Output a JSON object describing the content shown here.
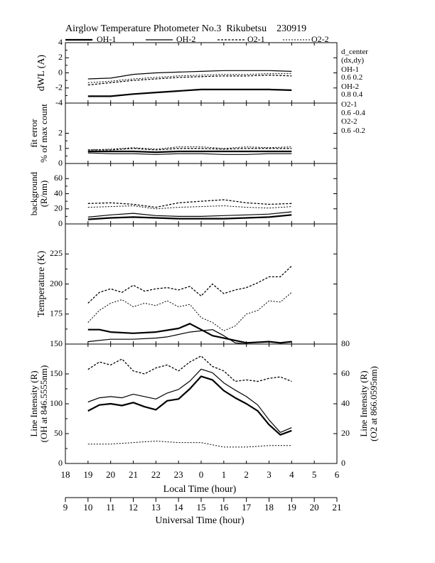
{
  "title": "Airglow Temperature Photometer No.3  Rikubetsu    230919",
  "legend": [
    {
      "name": "OH-1",
      "style": "solid-thick"
    },
    {
      "name": "OH-2",
      "style": "solid-thin"
    },
    {
      "name": "O2-1",
      "style": "dashed"
    },
    {
      "name": "O2-2",
      "style": "dotted"
    }
  ],
  "side_note": {
    "lines": [
      "d_center",
      "(dx,dy)",
      "OH-1",
      "0.6   0.2",
      "OH-2",
      "0.8   0.4",
      "O2-1",
      "0.6   -0.4",
      "O2-2",
      "0.6   -0.2"
    ]
  },
  "x_axes": {
    "local_label": "Local Time (hour)",
    "local_ticks": [
      "18",
      "19",
      "20",
      "21",
      "22",
      "23",
      "0",
      "1",
      "2",
      "3",
      "4",
      "5",
      "6"
    ],
    "ut_label": "Universal Time (hour)",
    "ut_ticks": [
      "9",
      "10",
      "11",
      "12",
      "13",
      "14",
      "15",
      "16",
      "17",
      "18",
      "19",
      "20",
      "21"
    ]
  },
  "chart_data": [
    {
      "type": "line",
      "ylabel": "dWL (A)",
      "ylim": [
        -4,
        4
      ],
      "yticks": [
        "4",
        "2",
        "0",
        "-2",
        "-4"
      ],
      "x_unit": "local hour (19 = 19:00, 28 = 04:00)",
      "series": [
        {
          "name": "OH-1",
          "x": [
            19,
            20,
            21,
            22,
            23,
            24,
            25,
            26,
            27,
            28
          ],
          "y": [
            -3.1,
            -3.1,
            -2.8,
            -2.6,
            -2.4,
            -2.2,
            -2.2,
            -2.2,
            -2.2,
            -2.3
          ]
        },
        {
          "name": "OH-2",
          "x": [
            19,
            20,
            21,
            22,
            23,
            24,
            25,
            26,
            27,
            28
          ],
          "y": [
            -0.8,
            -0.7,
            -0.2,
            0.0,
            0.1,
            0.2,
            0.3,
            0.3,
            0.3,
            0.2
          ]
        },
        {
          "name": "O2-1",
          "x": [
            19,
            20,
            21,
            22,
            23,
            24,
            25,
            26,
            27,
            28
          ],
          "y": [
            -1.6,
            -1.3,
            -1.0,
            -0.8,
            -0.6,
            -0.5,
            -0.4,
            -0.4,
            -0.3,
            -0.4
          ]
        },
        {
          "name": "O2-2",
          "x": [
            19,
            20,
            21,
            22,
            23,
            24,
            25,
            26,
            27,
            28
          ],
          "y": [
            -1.3,
            -1.1,
            -0.8,
            -0.6,
            -0.4,
            -0.3,
            -0.2,
            -0.2,
            -0.1,
            -0.1
          ]
        }
      ]
    },
    {
      "type": "line",
      "ylabel": "fit error",
      "ylabel2": "% of max count",
      "ylim": [
        0,
        4
      ],
      "yticks": [
        "2",
        "1",
        "0"
      ],
      "series": [
        {
          "name": "OH-1",
          "x": [
            19,
            20,
            21,
            22,
            23,
            24,
            25,
            26,
            27,
            28
          ],
          "y": [
            0.8,
            0.8,
            0.8,
            0.75,
            0.8,
            0.8,
            0.8,
            0.8,
            0.8,
            0.8
          ]
        },
        {
          "name": "OH-2",
          "x": [
            19,
            20,
            21,
            22,
            23,
            24,
            25,
            26,
            27,
            28
          ],
          "y": [
            0.7,
            0.65,
            0.65,
            0.6,
            0.65,
            0.65,
            0.6,
            0.6,
            0.65,
            0.65
          ]
        },
        {
          "name": "O2-1",
          "x": [
            19,
            20,
            21,
            22,
            23,
            24,
            25,
            26,
            27,
            28
          ],
          "y": [
            0.9,
            0.9,
            1.0,
            0.9,
            1.0,
            1.0,
            0.95,
            1.0,
            1.0,
            1.0
          ]
        },
        {
          "name": "O2-2",
          "x": [
            19,
            20,
            21,
            22,
            23,
            24,
            25,
            26,
            27,
            28
          ],
          "y": [
            0.9,
            0.95,
            1.05,
            0.95,
            1.1,
            1.1,
            1.0,
            1.1,
            1.05,
            1.1
          ]
        }
      ]
    },
    {
      "type": "line",
      "ylabel": "background",
      "ylabel2": "(R/nm)",
      "ylim": [
        0,
        80
      ],
      "yticks": [
        "60",
        "40",
        "20",
        "0"
      ],
      "series": [
        {
          "name": "OH-1",
          "x": [
            19,
            20,
            21,
            22,
            23,
            24,
            25,
            26,
            27,
            28
          ],
          "y": [
            6,
            8,
            9,
            8,
            7,
            7,
            7,
            8,
            9,
            12
          ]
        },
        {
          "name": "OH-2",
          "x": [
            19,
            20,
            21,
            22,
            23,
            24,
            25,
            26,
            27,
            28
          ],
          "y": [
            9,
            12,
            14,
            11,
            10,
            10,
            11,
            12,
            13,
            16
          ]
        },
        {
          "name": "O2-1",
          "x": [
            19,
            20,
            21,
            22,
            23,
            24,
            25,
            26,
            27,
            28
          ],
          "y": [
            27,
            28,
            26,
            22,
            28,
            30,
            32,
            28,
            26,
            27
          ]
        },
        {
          "name": "O2-2",
          "x": [
            19,
            20,
            21,
            22,
            23,
            24,
            25,
            26,
            27,
            28
          ],
          "y": [
            22,
            23,
            24,
            20,
            22,
            23,
            24,
            22,
            21,
            23
          ]
        }
      ]
    },
    {
      "type": "line",
      "ylabel": "Temperature (K)",
      "ylim": [
        150,
        250
      ],
      "yticks": [
        "225",
        "200",
        "175",
        "150"
      ],
      "series": [
        {
          "name": "OH-1",
          "x": [
            19,
            19.5,
            20,
            21,
            22,
            23,
            23.5,
            24,
            24.5,
            25,
            25.5,
            26,
            27,
            27.5,
            28
          ],
          "y": [
            162,
            162,
            160,
            159,
            160,
            163,
            167,
            162,
            157,
            155,
            153,
            151,
            152,
            151,
            152
          ]
        },
        {
          "name": "OH-2",
          "x": [
            19,
            20,
            21,
            22,
            22.5,
            23,
            23.5,
            24,
            24.5,
            25,
            25.5,
            26,
            27,
            27.5,
            28
          ],
          "y": [
            152,
            154,
            154,
            155,
            156,
            158,
            160,
            161,
            162,
            157,
            151,
            150,
            149,
            150,
            150
          ]
        },
        {
          "name": "O2-1",
          "x": [
            19,
            19.5,
            20,
            20.5,
            21,
            21.5,
            22,
            22.5,
            23,
            23.5,
            24,
            24.5,
            25,
            25.5,
            26,
            26.5,
            27,
            27.5,
            28
          ],
          "y": [
            184,
            193,
            196,
            193,
            199,
            194,
            196,
            197,
            195,
            198,
            190,
            200,
            192,
            195,
            197,
            201,
            206,
            206,
            215
          ]
        },
        {
          "name": "O2-2",
          "x": [
            19,
            19.5,
            20,
            20.5,
            21,
            21.5,
            22,
            22.5,
            23,
            23.5,
            24,
            24.5,
            25,
            25.5,
            26,
            26.5,
            27,
            27.5,
            28
          ],
          "y": [
            168,
            178,
            184,
            187,
            181,
            184,
            182,
            186,
            181,
            183,
            172,
            168,
            161,
            165,
            175,
            178,
            186,
            185,
            193
          ]
        }
      ]
    },
    {
      "type": "line",
      "ylabel": "Line Intensity (R)",
      "ylabel2": "(OH at 846.5555nm)",
      "y2label": "Line Intensity (R)",
      "y2label2": "(O2 at 866.0595nm)",
      "ylim": [
        0,
        200
      ],
      "yticks": [
        "150",
        "100",
        "50",
        "0"
      ],
      "y2lim": [
        0,
        80
      ],
      "y2ticks": [
        "80",
        "60",
        "40",
        "20",
        "0"
      ],
      "series": [
        {
          "name": "OH-1",
          "x": [
            19,
            19.5,
            20,
            20.5,
            21,
            21.5,
            22,
            22.5,
            23,
            23.5,
            24,
            24.5,
            25,
            25.5,
            26,
            26.5,
            27,
            27.5,
            28
          ],
          "y": [
            88,
            98,
            100,
            97,
            102,
            95,
            90,
            105,
            108,
            125,
            146,
            140,
            122,
            110,
            100,
            88,
            65,
            48,
            55
          ]
        },
        {
          "name": "OH-2",
          "x": [
            19,
            19.5,
            20,
            20.5,
            21,
            21.5,
            22,
            22.5,
            23,
            23.5,
            24,
            24.5,
            25,
            25.5,
            26,
            26.5,
            27,
            27.5,
            28
          ],
          "y": [
            103,
            110,
            112,
            110,
            116,
            112,
            108,
            118,
            124,
            138,
            158,
            152,
            135,
            123,
            112,
            98,
            73,
            52,
            60
          ]
        },
        {
          "name": "O2-1",
          "x": [
            19,
            19.5,
            20,
            20.5,
            21,
            21.5,
            22,
            22.5,
            23,
            23.5,
            24,
            24.5,
            25,
            25.5,
            26,
            26.5,
            27,
            27.5,
            28
          ],
          "y": [
            63,
            68,
            66,
            70,
            62,
            60,
            64,
            66,
            62,
            68,
            72,
            65,
            62,
            55,
            56,
            55,
            57,
            58,
            55
          ]
        },
        {
          "name": "O2-2",
          "x": [
            19,
            20,
            21,
            22,
            23,
            24,
            25,
            26,
            27,
            28
          ],
          "y": [
            13,
            13,
            14,
            15,
            14,
            14,
            11,
            11,
            12,
            12
          ]
        }
      ]
    }
  ]
}
